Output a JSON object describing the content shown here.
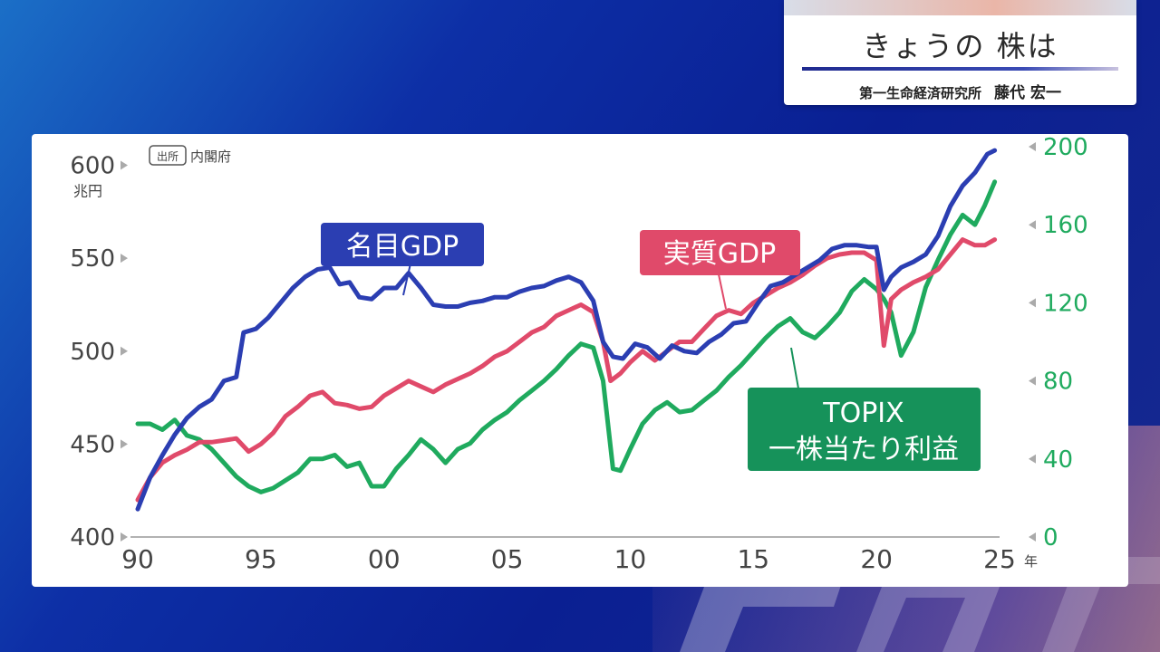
{
  "header": {
    "title": "きょうの 株は",
    "subtitle": "第一生命経済研究所",
    "analyst": "藤代 宏一"
  },
  "source": {
    "badge": "出所",
    "text": "内閣府"
  },
  "colors": {
    "nominal": "#2b3eb2",
    "real": "#e04a6a",
    "topix": "#1faa5e",
    "label_nominal_bg": "#2b3eb2",
    "label_real_bg": "#e04a6a",
    "label_topix_bg": "#16925a"
  },
  "chart_data": {
    "type": "line",
    "x_ticks": [
      "90",
      "95",
      "00",
      "05",
      "10",
      "15",
      "20",
      "25"
    ],
    "x_unit": "年",
    "y_left": {
      "unit": "兆円",
      "ylim": [
        400,
        610
      ],
      "ticks": [
        "600",
        "550",
        "500",
        "450",
        "400"
      ]
    },
    "y_right": {
      "ylim": [
        0,
        200
      ],
      "ticks": [
        "200",
        "160",
        "120",
        "80",
        "40",
        "0"
      ]
    },
    "grid": false,
    "legend": "inline labels",
    "series": [
      {
        "name": "名目GDP",
        "axis": "left",
        "points": [
          [
            1990.0,
            415
          ],
          [
            1990.5,
            432
          ],
          [
            1991.0,
            444
          ],
          [
            1991.5,
            455
          ],
          [
            1992.0,
            464
          ],
          [
            1992.5,
            470
          ],
          [
            1993.0,
            474
          ],
          [
            1993.5,
            484
          ],
          [
            1994.0,
            486
          ],
          [
            1994.3,
            510
          ],
          [
            1994.8,
            512
          ],
          [
            1995.3,
            518
          ],
          [
            1995.8,
            526
          ],
          [
            1996.3,
            534
          ],
          [
            1996.8,
            540
          ],
          [
            1997.3,
            544
          ],
          [
            1997.8,
            545
          ],
          [
            1998.2,
            536
          ],
          [
            1998.6,
            537
          ],
          [
            1999.0,
            529
          ],
          [
            1999.5,
            528
          ],
          [
            2000.0,
            534
          ],
          [
            2000.5,
            534
          ],
          [
            2001.0,
            542
          ],
          [
            2001.5,
            534
          ],
          [
            2002.0,
            525
          ],
          [
            2002.5,
            524
          ],
          [
            2003.0,
            524
          ],
          [
            2003.5,
            526
          ],
          [
            2004.0,
            527
          ],
          [
            2004.5,
            529
          ],
          [
            2005.0,
            529
          ],
          [
            2005.5,
            532
          ],
          [
            2006.0,
            534
          ],
          [
            2006.5,
            535
          ],
          [
            2007.0,
            538
          ],
          [
            2007.5,
            540
          ],
          [
            2008.0,
            537
          ],
          [
            2008.5,
            527
          ],
          [
            2008.9,
            505
          ],
          [
            2009.3,
            497
          ],
          [
            2009.7,
            496
          ],
          [
            2010.2,
            504
          ],
          [
            2010.7,
            502
          ],
          [
            2011.2,
            496
          ],
          [
            2011.7,
            503
          ],
          [
            2012.2,
            500
          ],
          [
            2012.7,
            499
          ],
          [
            2013.2,
            505
          ],
          [
            2013.7,
            509
          ],
          [
            2014.2,
            515
          ],
          [
            2014.7,
            516
          ],
          [
            2015.2,
            526
          ],
          [
            2015.7,
            535
          ],
          [
            2016.2,
            537
          ],
          [
            2016.7,
            541
          ],
          [
            2017.2,
            545
          ],
          [
            2017.7,
            549
          ],
          [
            2018.2,
            555
          ],
          [
            2018.7,
            557
          ],
          [
            2019.2,
            557
          ],
          [
            2019.7,
            556
          ],
          [
            2020.0,
            556
          ],
          [
            2020.3,
            533
          ],
          [
            2020.6,
            540
          ],
          [
            2021.0,
            545
          ],
          [
            2021.5,
            548
          ],
          [
            2022.0,
            552
          ],
          [
            2022.5,
            562
          ],
          [
            2023.0,
            578
          ],
          [
            2023.5,
            589
          ],
          [
            2024.0,
            596
          ],
          [
            2024.5,
            606
          ],
          [
            2024.8,
            608
          ]
        ]
      },
      {
        "name": "実質GDP",
        "axis": "left",
        "points": [
          [
            1990.0,
            420
          ],
          [
            1990.5,
            432
          ],
          [
            1991.0,
            440
          ],
          [
            1991.5,
            444
          ],
          [
            1992.0,
            447
          ],
          [
            1992.5,
            451
          ],
          [
            1993.0,
            451
          ],
          [
            1993.5,
            452
          ],
          [
            1994.0,
            453
          ],
          [
            1994.5,
            446
          ],
          [
            1995.0,
            450
          ],
          [
            1995.5,
            456
          ],
          [
            1996.0,
            465
          ],
          [
            1996.5,
            470
          ],
          [
            1997.0,
            476
          ],
          [
            1997.5,
            478
          ],
          [
            1998.0,
            472
          ],
          [
            1998.5,
            471
          ],
          [
            1999.0,
            469
          ],
          [
            1999.5,
            470
          ],
          [
            2000.0,
            476
          ],
          [
            2000.5,
            480
          ],
          [
            2001.0,
            484
          ],
          [
            2001.5,
            481
          ],
          [
            2002.0,
            478
          ],
          [
            2002.5,
            482
          ],
          [
            2003.0,
            485
          ],
          [
            2003.5,
            488
          ],
          [
            2004.0,
            492
          ],
          [
            2004.5,
            497
          ],
          [
            2005.0,
            500
          ],
          [
            2005.5,
            505
          ],
          [
            2006.0,
            510
          ],
          [
            2006.5,
            513
          ],
          [
            2007.0,
            519
          ],
          [
            2007.5,
            522
          ],
          [
            2008.0,
            525
          ],
          [
            2008.5,
            521
          ],
          [
            2008.9,
            505
          ],
          [
            2009.2,
            484
          ],
          [
            2009.6,
            488
          ],
          [
            2010.0,
            494
          ],
          [
            2010.5,
            500
          ],
          [
            2011.0,
            495
          ],
          [
            2011.5,
            500
          ],
          [
            2012.0,
            505
          ],
          [
            2012.5,
            505
          ],
          [
            2013.0,
            512
          ],
          [
            2013.5,
            519
          ],
          [
            2014.0,
            522
          ],
          [
            2014.5,
            520
          ],
          [
            2015.0,
            526
          ],
          [
            2015.5,
            530
          ],
          [
            2016.0,
            534
          ],
          [
            2016.5,
            537
          ],
          [
            2017.0,
            541
          ],
          [
            2017.5,
            546
          ],
          [
            2018.0,
            550
          ],
          [
            2018.5,
            552
          ],
          [
            2019.0,
            553
          ],
          [
            2019.5,
            553
          ],
          [
            2020.0,
            549
          ],
          [
            2020.3,
            503
          ],
          [
            2020.6,
            528
          ],
          [
            2021.0,
            533
          ],
          [
            2021.5,
            537
          ],
          [
            2022.0,
            540
          ],
          [
            2022.5,
            544
          ],
          [
            2023.0,
            552
          ],
          [
            2023.5,
            560
          ],
          [
            2024.0,
            557
          ],
          [
            2024.4,
            557
          ],
          [
            2024.8,
            560
          ]
        ]
      },
      {
        "name": "TOPIX 一株当たり利益",
        "axis": "right",
        "points": [
          [
            1990.0,
            58
          ],
          [
            1990.5,
            58
          ],
          [
            1991.0,
            55
          ],
          [
            1991.5,
            60
          ],
          [
            1992.0,
            52
          ],
          [
            1992.5,
            50
          ],
          [
            1993.0,
            45
          ],
          [
            1993.5,
            38
          ],
          [
            1994.0,
            31
          ],
          [
            1994.5,
            26
          ],
          [
            1995.0,
            23
          ],
          [
            1995.5,
            25
          ],
          [
            1996.0,
            29
          ],
          [
            1996.5,
            33
          ],
          [
            1997.0,
            40
          ],
          [
            1997.5,
            40
          ],
          [
            1998.0,
            42
          ],
          [
            1998.5,
            36
          ],
          [
            1999.0,
            38
          ],
          [
            1999.5,
            26
          ],
          [
            2000.0,
            26
          ],
          [
            2000.5,
            35
          ],
          [
            2001.0,
            42
          ],
          [
            2001.5,
            50
          ],
          [
            2002.0,
            45
          ],
          [
            2002.5,
            38
          ],
          [
            2003.0,
            45
          ],
          [
            2003.5,
            48
          ],
          [
            2004.0,
            55
          ],
          [
            2004.5,
            60
          ],
          [
            2005.0,
            64
          ],
          [
            2005.5,
            70
          ],
          [
            2006.0,
            75
          ],
          [
            2006.5,
            80
          ],
          [
            2007.0,
            86
          ],
          [
            2007.5,
            93
          ],
          [
            2008.0,
            99
          ],
          [
            2008.5,
            97
          ],
          [
            2008.9,
            80
          ],
          [
            2009.3,
            35
          ],
          [
            2009.6,
            34
          ],
          [
            2010.0,
            45
          ],
          [
            2010.5,
            58
          ],
          [
            2011.0,
            65
          ],
          [
            2011.5,
            69
          ],
          [
            2012.0,
            64
          ],
          [
            2012.5,
            65
          ],
          [
            2013.0,
            70
          ],
          [
            2013.5,
            75
          ],
          [
            2014.0,
            82
          ],
          [
            2014.5,
            88
          ],
          [
            2015.0,
            95
          ],
          [
            2015.5,
            102
          ],
          [
            2016.0,
            108
          ],
          [
            2016.5,
            112
          ],
          [
            2017.0,
            105
          ],
          [
            2017.5,
            102
          ],
          [
            2018.0,
            108
          ],
          [
            2018.5,
            115
          ],
          [
            2019.0,
            126
          ],
          [
            2019.5,
            132
          ],
          [
            2020.0,
            127
          ],
          [
            2020.3,
            122
          ],
          [
            2020.6,
            115
          ],
          [
            2021.0,
            93
          ],
          [
            2021.5,
            105
          ],
          [
            2022.0,
            128
          ],
          [
            2022.5,
            142
          ],
          [
            2023.0,
            155
          ],
          [
            2023.5,
            165
          ],
          [
            2024.0,
            160
          ],
          [
            2024.4,
            170
          ],
          [
            2024.8,
            182
          ]
        ]
      }
    ],
    "labels": {
      "nominal": "名目GDP",
      "real": "実質GDP",
      "topix_line1": "TOPIX",
      "topix_line2": "一株当たり利益"
    }
  }
}
